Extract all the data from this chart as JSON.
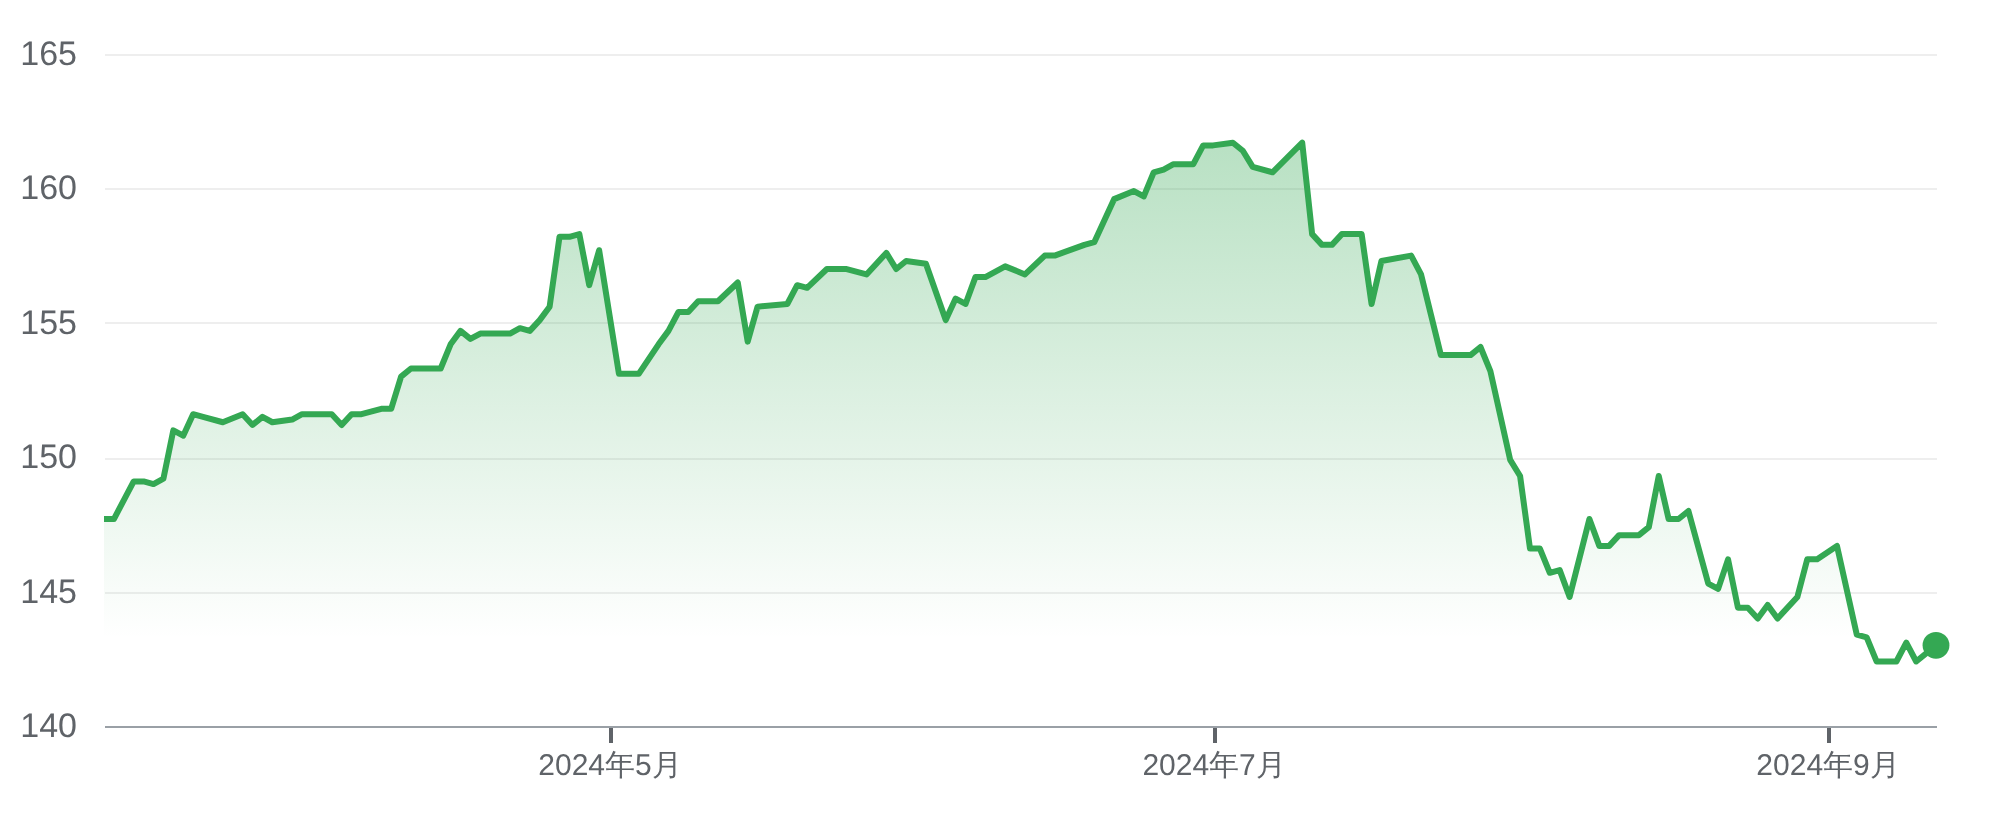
{
  "chart_data": {
    "type": "area",
    "xlim": [
      "2024-03-11",
      "2024-09-12"
    ],
    "xticks": [
      {
        "value": "2024-05-01",
        "label": "2024年5月"
      },
      {
        "value": "2024-07-01",
        "label": "2024年7月"
      },
      {
        "value": "2024-09-01",
        "label": "2024年9月"
      }
    ],
    "ylim": [
      140,
      165
    ],
    "yticks": [
      140,
      145,
      150,
      155,
      160,
      165
    ],
    "grid": "y",
    "series": [
      {
        "color": "#34a853",
        "x": [
          "2024-03-11",
          "2024-03-12",
          "2024-03-14",
          "2024-03-15",
          "2024-03-16",
          "2024-03-17",
          "2024-03-18",
          "2024-03-19",
          "2024-03-20",
          "2024-03-21",
          "2024-03-23",
          "2024-03-25",
          "2024-03-26",
          "2024-03-27",
          "2024-03-28",
          "2024-03-30",
          "2024-03-31",
          "2024-04-03",
          "2024-04-04",
          "2024-04-05",
          "2024-04-06",
          "2024-04-08",
          "2024-04-09",
          "2024-04-10",
          "2024-04-11",
          "2024-04-14",
          "2024-04-15",
          "2024-04-16",
          "2024-04-17",
          "2024-04-18",
          "2024-04-21",
          "2024-04-22",
          "2024-04-23",
          "2024-04-24",
          "2024-04-25",
          "2024-04-26",
          "2024-04-27",
          "2024-04-28",
          "2024-04-29",
          "2024-04-30",
          "2024-05-02",
          "2024-05-04",
          "2024-05-06",
          "2024-05-07",
          "2024-05-08",
          "2024-05-09",
          "2024-05-10",
          "2024-05-12",
          "2024-05-14",
          "2024-05-15",
          "2024-05-16",
          "2024-05-19",
          "2024-05-20",
          "2024-05-21",
          "2024-05-23",
          "2024-05-25",
          "2024-05-27",
          "2024-05-29",
          "2024-05-30",
          "2024-05-31",
          "2024-06-02",
          "2024-06-04",
          "2024-06-05",
          "2024-06-06",
          "2024-06-07",
          "2024-06-08",
          "2024-06-10",
          "2024-06-12",
          "2024-06-14",
          "2024-06-15",
          "2024-06-18",
          "2024-06-19",
          "2024-06-21",
          "2024-06-23",
          "2024-06-24",
          "2024-06-25",
          "2024-06-26",
          "2024-06-27",
          "2024-06-29",
          "2024-06-30",
          "2024-07-01",
          "2024-07-03",
          "2024-07-04",
          "2024-07-05",
          "2024-07-07",
          "2024-07-10",
          "2024-07-11",
          "2024-07-12",
          "2024-07-13",
          "2024-07-14",
          "2024-07-16",
          "2024-07-17",
          "2024-07-18",
          "2024-07-21",
          "2024-07-22",
          "2024-07-23",
          "2024-07-24",
          "2024-07-27",
          "2024-07-28",
          "2024-07-29",
          "2024-07-31",
          "2024-08-01",
          "2024-08-02",
          "2024-08-03",
          "2024-08-04",
          "2024-08-05",
          "2024-08-06",
          "2024-08-08",
          "2024-08-09",
          "2024-08-10",
          "2024-08-11",
          "2024-08-13",
          "2024-08-14",
          "2024-08-15",
          "2024-08-16",
          "2024-08-17",
          "2024-08-18",
          "2024-08-20",
          "2024-08-21",
          "2024-08-22",
          "2024-08-23",
          "2024-08-24",
          "2024-08-25",
          "2024-08-26",
          "2024-08-27",
          "2024-08-29",
          "2024-08-30",
          "2024-08-31",
          "2024-09-02",
          "2024-09-04",
          "2024-09-05",
          "2024-09-06",
          "2024-09-08",
          "2024-09-09",
          "2024-09-10",
          "2024-09-12"
        ],
        "values": [
          147.7,
          147.7,
          149.1,
          149.1,
          149.0,
          149.2,
          151.0,
          150.8,
          151.6,
          151.5,
          151.3,
          151.6,
          151.2,
          151.5,
          151.3,
          151.4,
          151.6,
          151.6,
          151.2,
          151.6,
          151.6,
          151.8,
          151.8,
          153.0,
          153.3,
          153.3,
          154.2,
          154.7,
          154.4,
          154.6,
          154.6,
          154.8,
          154.7,
          155.1,
          155.6,
          158.2,
          158.2,
          158.3,
          156.4,
          157.7,
          153.1,
          153.1,
          154.2,
          154.7,
          155.4,
          155.4,
          155.8,
          155.8,
          156.5,
          154.3,
          155.6,
          155.7,
          156.4,
          156.3,
          157.0,
          157.0,
          156.8,
          157.6,
          157.0,
          157.3,
          157.2,
          155.1,
          155.9,
          155.7,
          156.7,
          156.7,
          157.1,
          156.8,
          157.5,
          157.5,
          157.9,
          158.0,
          159.6,
          159.9,
          159.7,
          160.6,
          160.7,
          160.9,
          160.9,
          161.6,
          161.6,
          161.7,
          161.4,
          160.8,
          160.6,
          161.7,
          158.3,
          157.9,
          157.9,
          158.3,
          158.3,
          155.7,
          157.3,
          157.5,
          156.8,
          155.3,
          153.8,
          153.8,
          154.1,
          153.2,
          149.9,
          149.3,
          146.6,
          146.6,
          145.7,
          145.8,
          144.8,
          147.7,
          146.7,
          146.7,
          147.1,
          147.1,
          147.4,
          149.3,
          147.7,
          147.7,
          148.0,
          145.3,
          145.1,
          146.2,
          144.4,
          144.4,
          144.0,
          144.5,
          144.0,
          144.8,
          146.2,
          146.2,
          146.7,
          143.4,
          143.3,
          142.4,
          142.4,
          143.1,
          142.4,
          143.0
        ]
      },
      {
        "type": "scatter",
        "marker": "circle",
        "color": "#34a853",
        "x": [
          "2024-09-12"
        ],
        "values": [
          143.0
        ]
      }
    ]
  }
}
